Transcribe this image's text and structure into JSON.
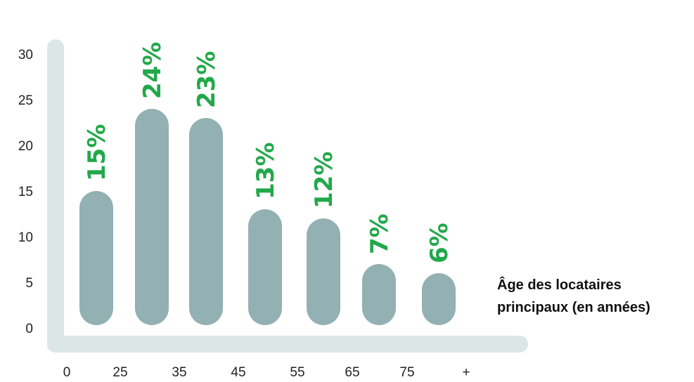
{
  "chart_data": {
    "type": "bar",
    "title": "",
    "xlabel": "Âge des locataires principaux (en années)",
    "xlabel_lines": [
      "Âge des locataires",
      "principaux (en années)"
    ],
    "ylabel": "",
    "x_tick_labels": [
      "0",
      "25",
      "35",
      "45",
      "55",
      "65",
      "75",
      "+"
    ],
    "y_ticks": [
      "0",
      "5",
      "10",
      "15",
      "20",
      "25",
      "30"
    ],
    "ylim": [
      0,
      30
    ],
    "categories": [
      "0-25",
      "25-35",
      "35-45",
      "45-55",
      "55-65",
      "65-75",
      "75+"
    ],
    "values": [
      15,
      24,
      23,
      13,
      12,
      7,
      6
    ],
    "data_labels": [
      "15%",
      "24%",
      "23%",
      "13%",
      "12%",
      "7%",
      "6%"
    ],
    "grid": false,
    "colors": {
      "bar": "#93b0b2",
      "label": "#22a84a",
      "axis": "#dde6e6"
    }
  }
}
